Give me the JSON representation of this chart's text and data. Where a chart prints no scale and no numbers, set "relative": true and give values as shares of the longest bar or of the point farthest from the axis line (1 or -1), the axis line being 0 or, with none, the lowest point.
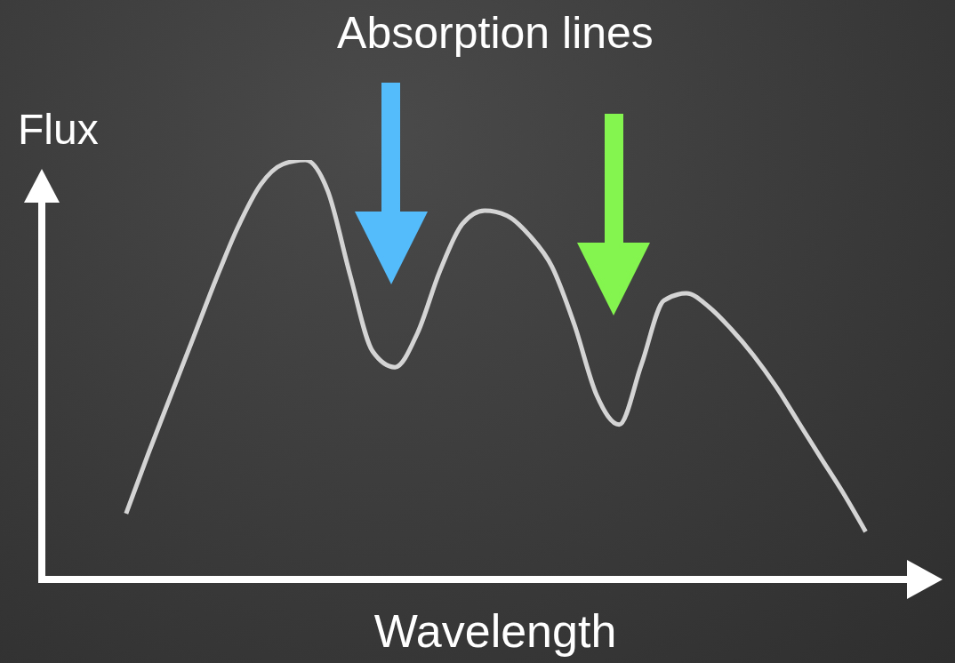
{
  "chart_data": {
    "type": "line",
    "relative": true,
    "title": "Absorption lines",
    "xlabel": "Wavelength",
    "ylabel": "Flux",
    "categories": [
      null,
      null,
      null,
      null,
      null,
      null,
      null,
      null,
      null,
      null,
      null,
      null,
      null,
      null,
      null,
      null,
      null,
      null,
      null,
      null,
      null,
      null,
      null,
      null,
      null,
      null,
      null,
      null,
      null,
      null,
      null,
      null,
      null,
      null
    ],
    "series": [
      {
        "color": "#d4d4d4",
        "values": [
          0.157,
          0.301,
          0.439,
          0.576,
          0.714,
          0.841,
          0.941,
          0.99,
          1,
          0.926,
          0.725,
          0.544,
          0.506,
          0.587,
          0.735,
          0.847,
          0.879,
          0.867,
          0.82,
          0.746,
          0.608,
          0.439,
          0.369,
          0.513,
          0.665,
          0.682,
          0.65,
          0.597,
          0.534,
          0.46,
          0.375,
          0.29,
          0.206,
          0.114
        ]
      }
    ]
  }
}
